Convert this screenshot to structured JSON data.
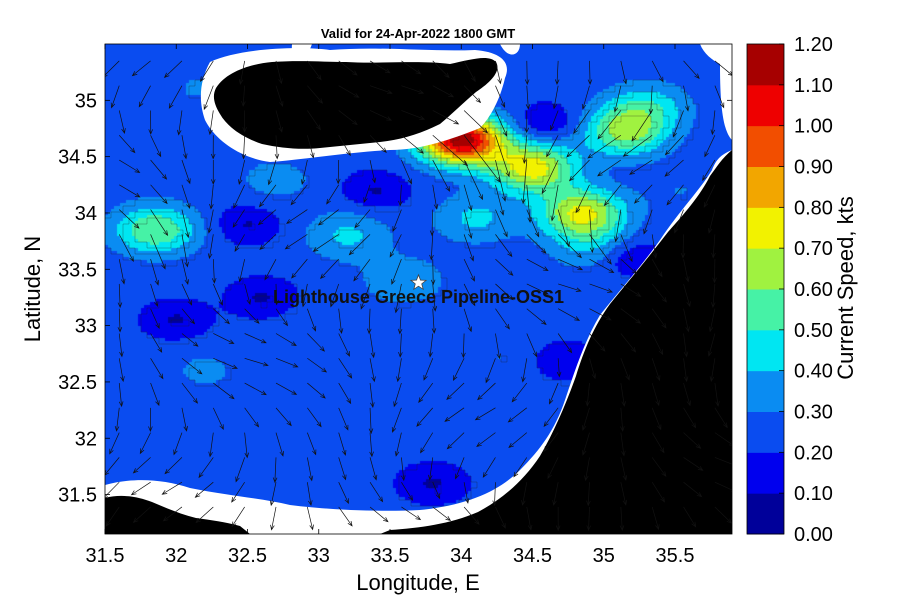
{
  "chart_data": {
    "type": "heatmap",
    "title": "Valid for 24-Apr-2022 1800 GMT",
    "xlabel": "Longitude, E",
    "ylabel": "Latitude, N",
    "xlim": [
      31.5,
      35.9
    ],
    "ylim": [
      31.15,
      35.5
    ],
    "xticks": [
      "31.5",
      "32",
      "32.5",
      "33",
      "33.5",
      "34",
      "34.5",
      "35",
      "35.5"
    ],
    "xtick_values": [
      31.5,
      32,
      32.5,
      33,
      33.5,
      34,
      34.5,
      35,
      35.5
    ],
    "yticks": [
      "31.5",
      "32",
      "32.5",
      "33",
      "33.5",
      "34",
      "34.5",
      "35"
    ],
    "ytick_values": [
      31.5,
      32,
      32.5,
      33,
      33.5,
      34,
      34.5,
      35
    ],
    "colorbar": {
      "label": "Current Speed, kts",
      "ticks": [
        "0.00",
        "0.10",
        "0.20",
        "0.30",
        "0.40",
        "0.50",
        "0.60",
        "0.70",
        "0.80",
        "0.90",
        "1.00",
        "1.10",
        "1.20"
      ],
      "levels": [
        0,
        0.1,
        0.2,
        0.3,
        0.4,
        0.5,
        0.6,
        0.7,
        0.8,
        0.9,
        1.0,
        1.1,
        1.2
      ],
      "colors": [
        "#00009a",
        "#0000ee",
        "#0a4cf0",
        "#0a8cf2",
        "#00e6f2",
        "#46f2a6",
        "#a0f240",
        "#f2f200",
        "#f2a600",
        "#f24e00",
        "#ee0000",
        "#a60000"
      ]
    },
    "marker": {
      "label": "Lighthouse Greece Pipeline-OSS1",
      "lon": 33.7,
      "lat": 33.38
    },
    "speed_hotspots": [
      {
        "lon": 34.0,
        "lat": 34.65,
        "speed": 1.15
      },
      {
        "lon": 34.5,
        "lat": 34.4,
        "speed": 0.75
      },
      {
        "lon": 34.85,
        "lat": 34.0,
        "speed": 0.72
      },
      {
        "lon": 35.15,
        "lat": 34.72,
        "speed": 0.62
      },
      {
        "lon": 31.85,
        "lat": 33.85,
        "speed": 0.6
      },
      {
        "lon": 35.3,
        "lat": 34.95,
        "speed": 0.45
      },
      {
        "lon": 34.1,
        "lat": 33.95,
        "speed": 0.42
      },
      {
        "lon": 33.2,
        "lat": 33.8,
        "speed": 0.42
      },
      {
        "lon": 33.6,
        "lat": 33.4,
        "speed": 0.38
      },
      {
        "lon": 34.9,
        "lat": 33.7,
        "speed": 0.38
      },
      {
        "lon": 32.2,
        "lat": 35.1,
        "speed": 0.32
      },
      {
        "lon": 32.7,
        "lat": 34.3,
        "speed": 0.34
      },
      {
        "lon": 32.2,
        "lat": 32.6,
        "speed": 0.32
      },
      {
        "lon": 33.5,
        "lat": 32.3,
        "speed": 0.3
      },
      {
        "lon": 34.3,
        "lat": 32.7,
        "speed": 0.3
      },
      {
        "lon": 34.4,
        "lat": 33.05,
        "speed": 0.28
      },
      {
        "lon": 33.1,
        "lat": 33.0,
        "speed": 0.28
      },
      {
        "lon": 32.5,
        "lat": 31.9,
        "speed": 0.3
      },
      {
        "lon": 31.9,
        "lat": 34.4,
        "speed": 0.28
      },
      {
        "lon": 35.55,
        "lat": 34.2,
        "speed": 0.3
      },
      {
        "lon": 35.05,
        "lat": 33.15,
        "speed": 0.26
      },
      {
        "lon": 31.75,
        "lat": 31.6,
        "speed": 0.22
      }
    ],
    "speed_minima": [
      {
        "lon": 32.5,
        "lat": 35.05
      },
      {
        "lon": 32.0,
        "lat": 33.05
      },
      {
        "lon": 32.5,
        "lat": 33.9
      },
      {
        "lon": 33.4,
        "lat": 34.2
      },
      {
        "lon": 34.7,
        "lat": 32.7
      },
      {
        "lon": 35.2,
        "lat": 33.6
      },
      {
        "lon": 33.8,
        "lat": 31.6
      },
      {
        "lon": 32.6,
        "lat": 33.25
      },
      {
        "lon": 34.6,
        "lat": 34.8
      }
    ]
  }
}
